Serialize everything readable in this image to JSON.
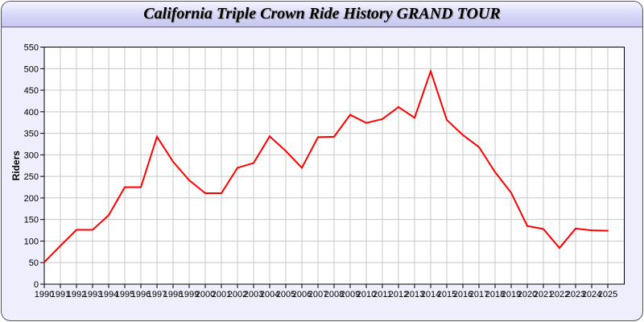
{
  "chart_data": {
    "type": "line",
    "title": "California Triple Crown Ride History GRAND TOUR",
    "xlabel": "",
    "ylabel": "Riders",
    "ylim": [
      0,
      550
    ],
    "yticks": [
      0,
      50,
      100,
      150,
      200,
      250,
      300,
      350,
      400,
      450,
      500,
      550
    ],
    "grid": true,
    "line_color": "#ff0000",
    "x": [
      1990,
      1991,
      1992,
      1993,
      1994,
      1995,
      1996,
      1997,
      1998,
      1999,
      2000,
      2001,
      2002,
      2003,
      2004,
      2005,
      2006,
      2007,
      2008,
      2009,
      2010,
      2011,
      2012,
      2013,
      2014,
      2015,
      2016,
      2017,
      2018,
      2019,
      2020,
      2021,
      2022,
      2023,
      2024,
      2025
    ],
    "values": [
      51,
      89,
      126,
      126,
      160,
      225,
      225,
      342,
      284,
      241,
      211,
      211,
      270,
      281,
      343,
      309,
      270,
      341,
      342,
      393,
      374,
      383,
      411,
      386,
      494,
      381,
      346,
      318,
      260,
      212,
      135,
      128,
      84,
      129,
      125,
      124
    ]
  }
}
